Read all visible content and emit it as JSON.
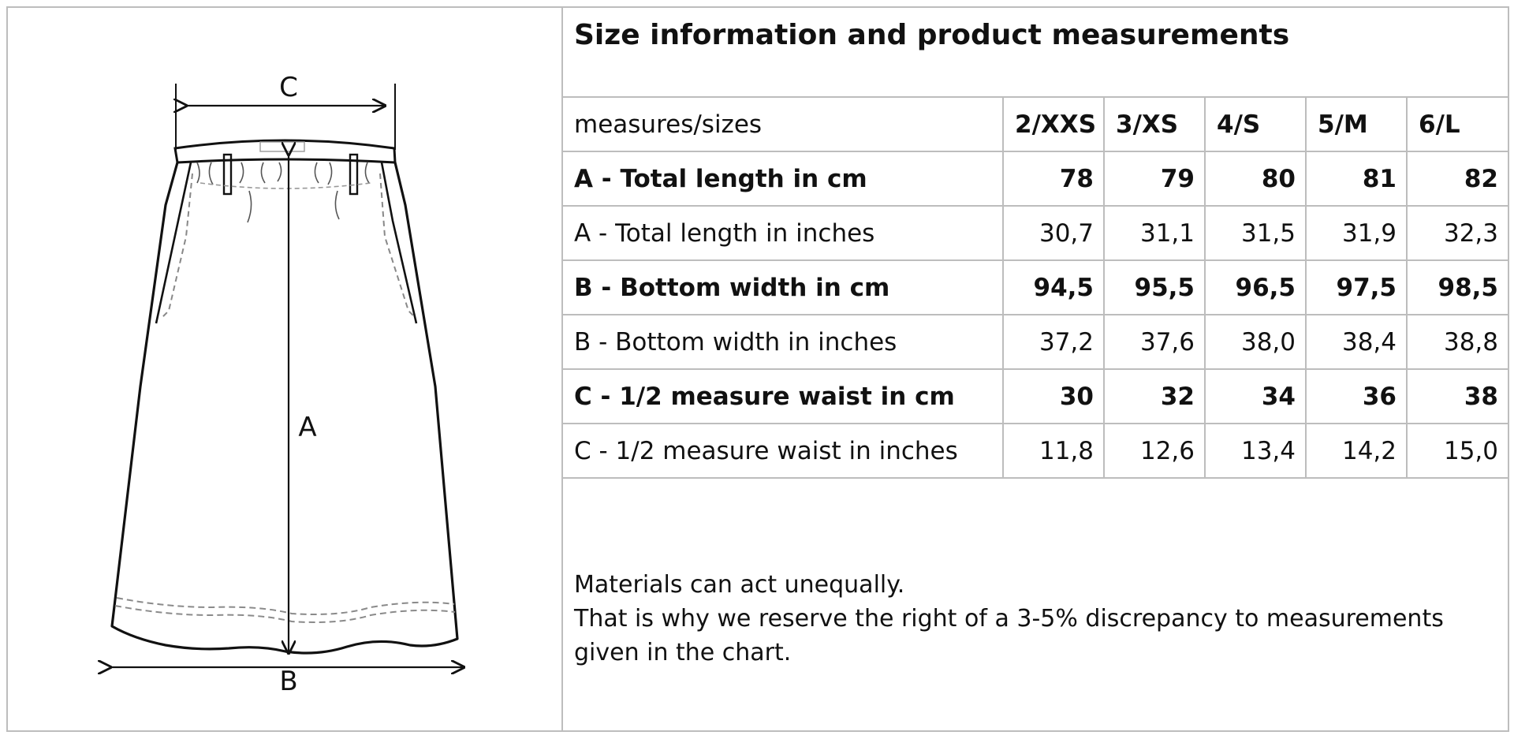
{
  "title": "Size information and product measurements",
  "diagram": {
    "labels": {
      "a": "A",
      "b": "B",
      "c": "C"
    }
  },
  "table": {
    "header": {
      "label": "measures/sizes",
      "sizes": [
        "2/XXS",
        "3/XS",
        "4/S",
        "5/M",
        "6/L"
      ]
    },
    "rows": [
      {
        "label": "A - Total length in cm",
        "values": [
          "78",
          "79",
          "80",
          "81",
          "82"
        ],
        "bold": true
      },
      {
        "label": "A - Total length in inches",
        "values": [
          "30,7",
          "31,1",
          "31,5",
          "31,9",
          "32,3"
        ],
        "bold": false
      },
      {
        "label": "B - Bottom width in cm",
        "values": [
          "94,5",
          "95,5",
          "96,5",
          "97,5",
          "98,5"
        ],
        "bold": true
      },
      {
        "label": "B - Bottom width in inches",
        "values": [
          "37,2",
          "37,6",
          "38,0",
          "38,4",
          "38,8"
        ],
        "bold": false
      },
      {
        "label": "C - 1/2 measure waist in cm",
        "values": [
          "30",
          "32",
          "34",
          "36",
          "38"
        ],
        "bold": true
      },
      {
        "label": "C - 1/2 measure waist in inches",
        "values": [
          "11,8",
          "12,6",
          "13,4",
          "14,2",
          "15,0"
        ],
        "bold": false
      }
    ]
  },
  "note": {
    "lines": [
      "Materials can act unequally.",
      "That is why we reserve the right of a 3-5% discrepancy to measurements",
      "given in the chart."
    ]
  },
  "colors": {
    "border": "#bdbdbd",
    "ink": "#111111",
    "stitch": "#8a8a8a"
  }
}
